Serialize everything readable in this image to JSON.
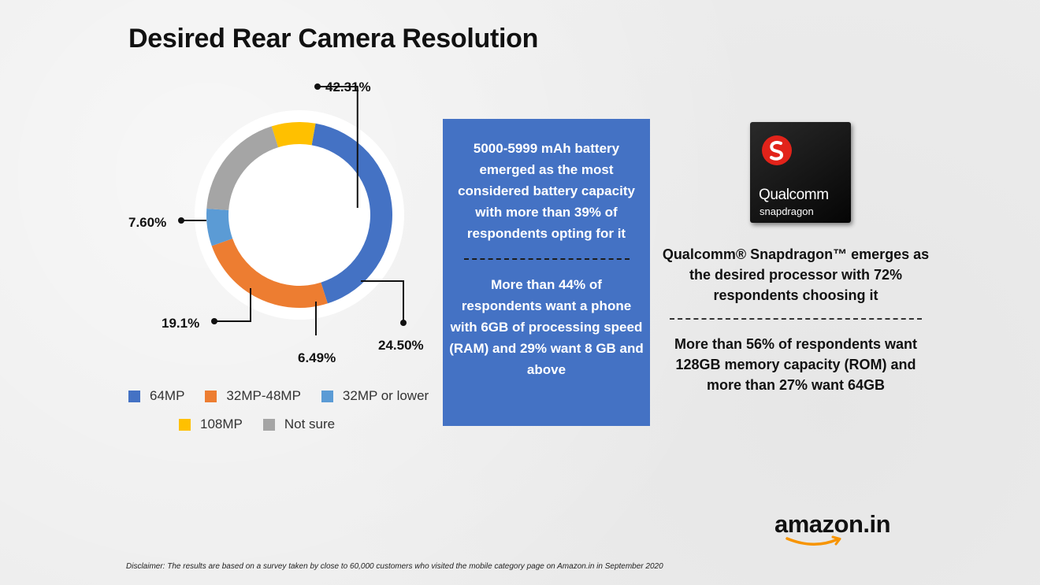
{
  "title": "Desired Rear Camera Resolution",
  "chart_data": {
    "type": "donut",
    "title": "Desired Rear Camera Resolution",
    "slices": [
      {
        "label": "64MP",
        "value": 42.31,
        "display": "42.31%",
        "color": "#4472c4"
      },
      {
        "label": "32MP-48MP",
        "value": 24.5,
        "display": "24.50%",
        "color": "#ed7d31"
      },
      {
        "label": "32MP or lower",
        "value": 6.49,
        "display": "6.49%",
        "color": "#5b9bd5"
      },
      {
        "label": "Not sure",
        "value": 19.1,
        "display": "19.1%",
        "color": "#a5a5a5"
      },
      {
        "label": "108MP",
        "value": 7.6,
        "display": "7.60%",
        "color": "#ffc000"
      }
    ],
    "legend": [
      "64MP",
      "32MP-48MP",
      "32MP or lower",
      "108MP",
      "Not sure"
    ],
    "legend_placement": "bottom"
  },
  "battery_box": {
    "battery_text": "5000-5999 mAh battery emerged as the most considered battery capacity with more than 39% of respondents opting for it",
    "ram_text": "More than 44% of respondents want a phone with 6GB of processing speed (RAM) and 29% want 8 GB and above",
    "color": "#4472c4"
  },
  "chip": {
    "brand": "Qualcomm",
    "sub": "snapdragon",
    "logo_color": "#e2231a"
  },
  "processor_text": "Qualcomm® Snapdragon™ emerges as the desired processor with 72% respondents choosing it",
  "memory_text": "More than 56% of respondents want 128GB memory capacity (ROM) and more than 27% want 64GB",
  "brand_logo": "amazon.in",
  "disclaimer": "Disclaimer: The results are based on a survey taken by close to 60,000 customers who visited the mobile category page on Amazon.in in September 2020"
}
